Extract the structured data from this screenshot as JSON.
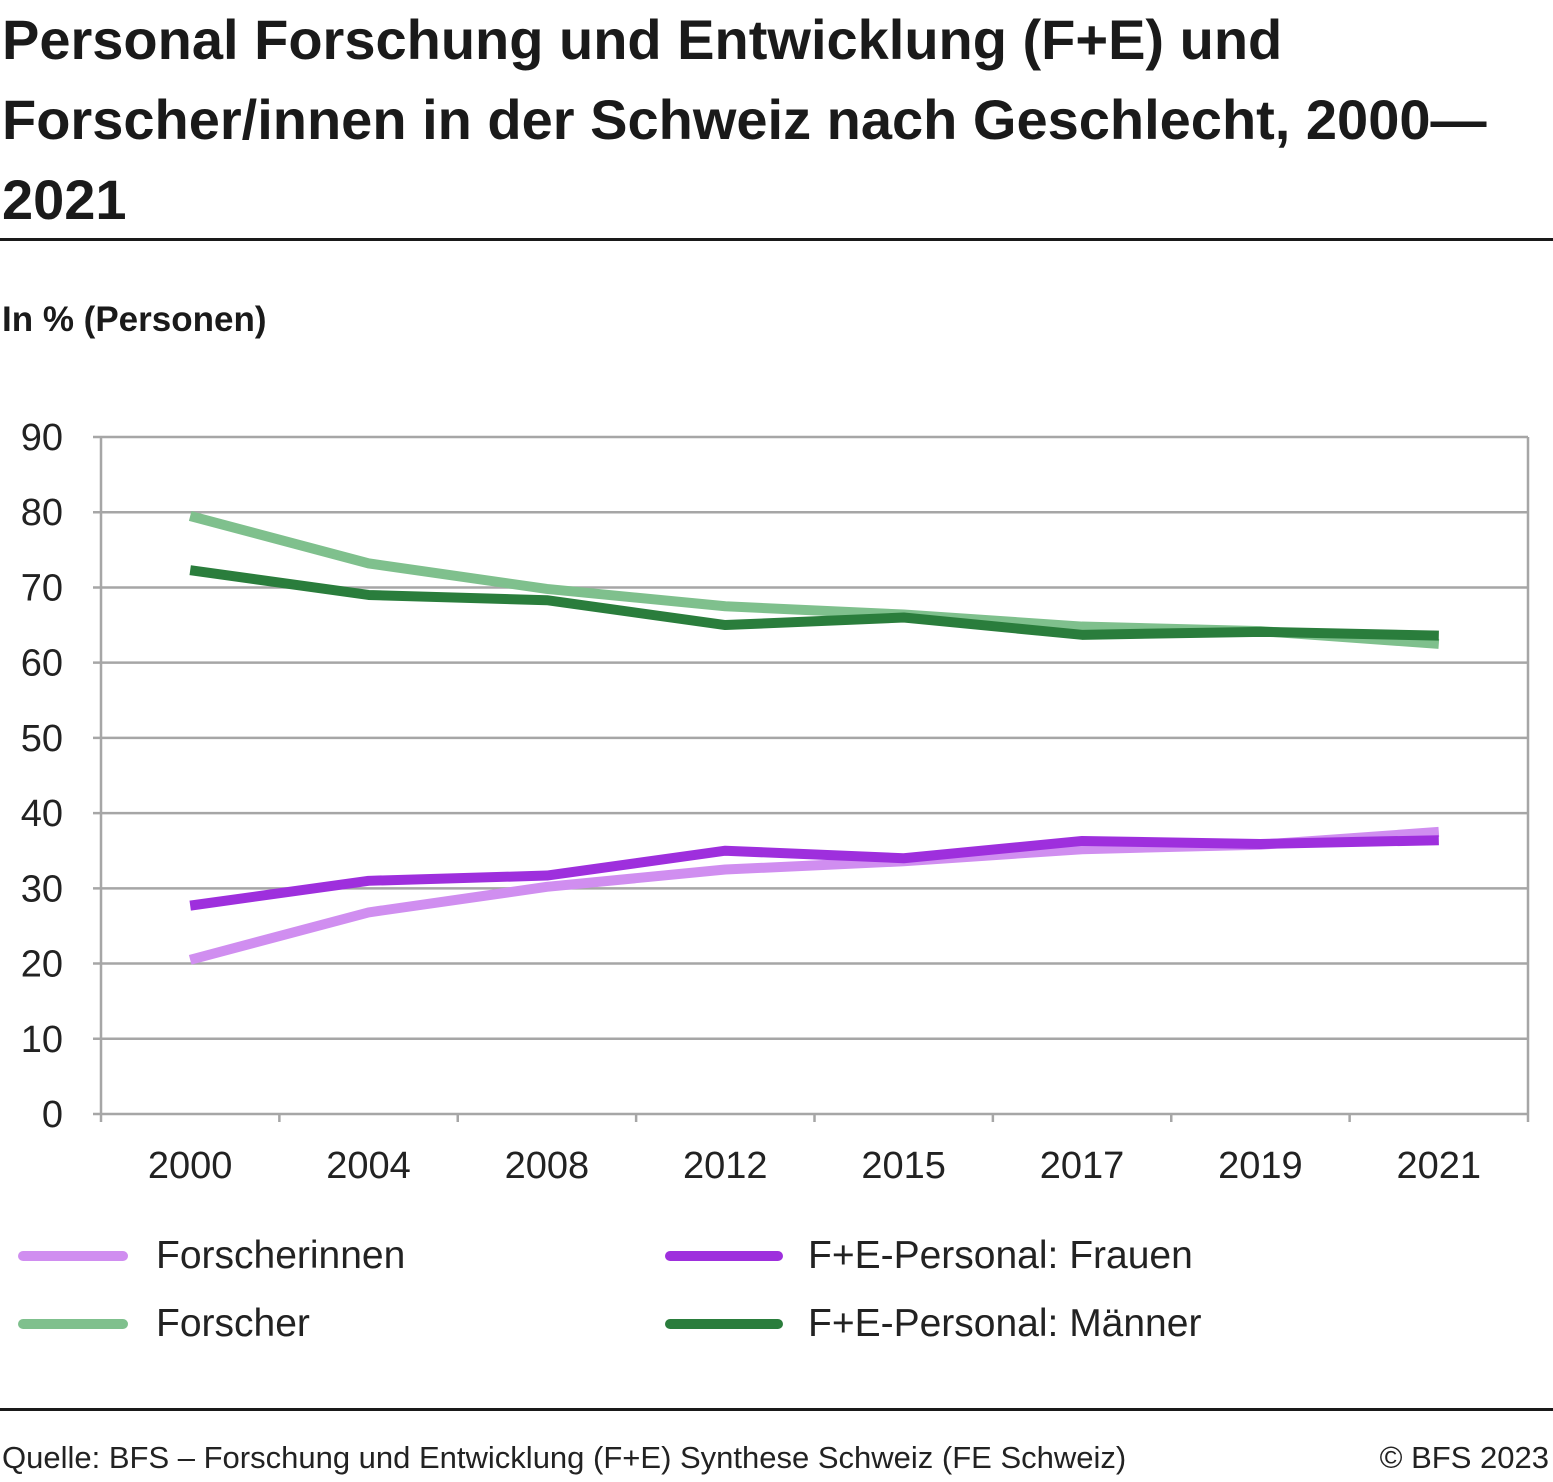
{
  "title": "Personal Forschung und Entwicklung (F+E) und Forscher/innen in der Schweiz nach Geschlecht, 2000—2021",
  "unit_label": "In % (Personen)",
  "source": "Quelle: BFS – Forschung und Entwicklung (F+E) Synthese Schweiz (FE Schweiz)",
  "copyright": "© BFS 2023",
  "chart_data": {
    "type": "line",
    "title": "Personal Forschung und Entwicklung (F+E) und Forscher/innen in der Schweiz nach Geschlecht, 2000—2021",
    "ylabel": "In % (Personen)",
    "xlabel": "",
    "ylim": [
      0,
      90
    ],
    "yticks": [
      0,
      10,
      20,
      30,
      40,
      50,
      60,
      70,
      80,
      90
    ],
    "categories": [
      "2000",
      "2004",
      "2008",
      "2012",
      "2015",
      "2017",
      "2019",
      "2021"
    ],
    "grid": true,
    "legend_placement": "bottom",
    "series": [
      {
        "name": "Forscherinnen",
        "color": "#d08ef0",
        "values": [
          20.5,
          26.8,
          30.2,
          32.5,
          33.6,
          35.2,
          35.8,
          37.5
        ]
      },
      {
        "name": "Forscher",
        "color": "#7fc08d",
        "values": [
          79.5,
          73.2,
          69.8,
          67.5,
          66.4,
          64.8,
          64.2,
          62.5
        ]
      },
      {
        "name": "F+E-Personal: Frauen",
        "color": "#9e2fdd",
        "values": [
          27.7,
          31.0,
          31.7,
          35.0,
          34.0,
          36.3,
          35.9,
          36.4
        ]
      },
      {
        "name": "F+E-Personal: Männer",
        "color": "#2a7d3c",
        "values": [
          72.3,
          69.0,
          68.3,
          65.0,
          66.0,
          63.7,
          64.1,
          63.6
        ]
      }
    ]
  }
}
